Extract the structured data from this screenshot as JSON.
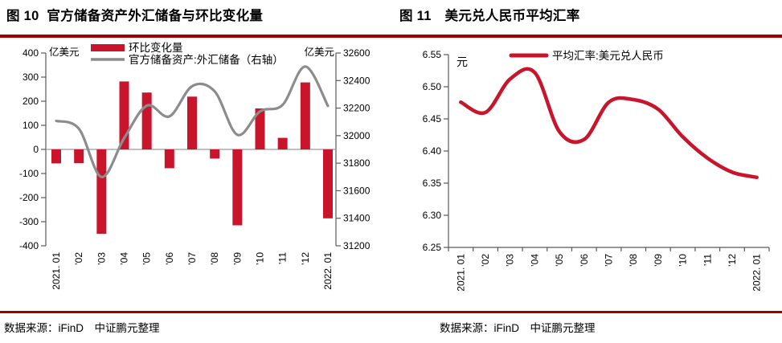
{
  "colors": {
    "accent_red": "#C9152B",
    "rule_red": "#A00000",
    "line_gray": "#8C8C8C",
    "axis_gray": "#595959"
  },
  "chart_data": [
    {
      "type": "bar",
      "title": "图 10  官方储备资产外汇储备与环比变化量",
      "source_note": "数据来源：iFinD　中证鹏元整理",
      "categories": [
        "2021. 01",
        "’02",
        "’03",
        "’04",
        "’05",
        "’06",
        "’07",
        "’08",
        "’09",
        "’10",
        "’11",
        "’12",
        "2022. 01"
      ],
      "series": [
        {
          "name": "环比变化量",
          "type": "bar",
          "axis": "left",
          "color": "#C9152B",
          "values": [
            -58,
            -57,
            -350,
            282,
            236,
            -78,
            219,
            -38,
            -315,
            170,
            48,
            278,
            -286
          ]
        },
        {
          "name": "官方储备资产:外汇储备（右轴）",
          "type": "line",
          "axis": "right",
          "color": "#8C8C8C",
          "values": [
            32107,
            32050,
            31700,
            31982,
            32218,
            32140,
            32359,
            32321,
            32006,
            32176,
            32224,
            32502,
            32216
          ]
        }
      ],
      "left_axis": {
        "unit": "亿美元",
        "min": -400,
        "max": 400,
        "step": 100
      },
      "right_axis": {
        "unit": "亿美元",
        "min": 31200,
        "max": 32600,
        "step": 200
      },
      "legend_position": "top",
      "grid": false
    },
    {
      "type": "line",
      "title": "图 11　美元兑人民币平均汇率",
      "source_note": "数据来源：iFinD　中证鹏元整理",
      "categories": [
        "2021. 01",
        "’02",
        "’03",
        "’04",
        "’05",
        "’06",
        "’07",
        "’08",
        "’09",
        "’10",
        "’11",
        "’12",
        "2022. 01"
      ],
      "series": [
        {
          "name": "平均汇率:美元兑人民币",
          "type": "line",
          "color": "#C9152B",
          "values": [
            6.476,
            6.46,
            6.512,
            6.522,
            6.43,
            6.418,
            6.476,
            6.48,
            6.465,
            6.422,
            6.389,
            6.367,
            6.359
          ]
        }
      ],
      "y_axis": {
        "unit": "元",
        "min": 6.25,
        "max": 6.55,
        "step": 0.05
      },
      "legend_position": "top",
      "grid": false
    }
  ]
}
